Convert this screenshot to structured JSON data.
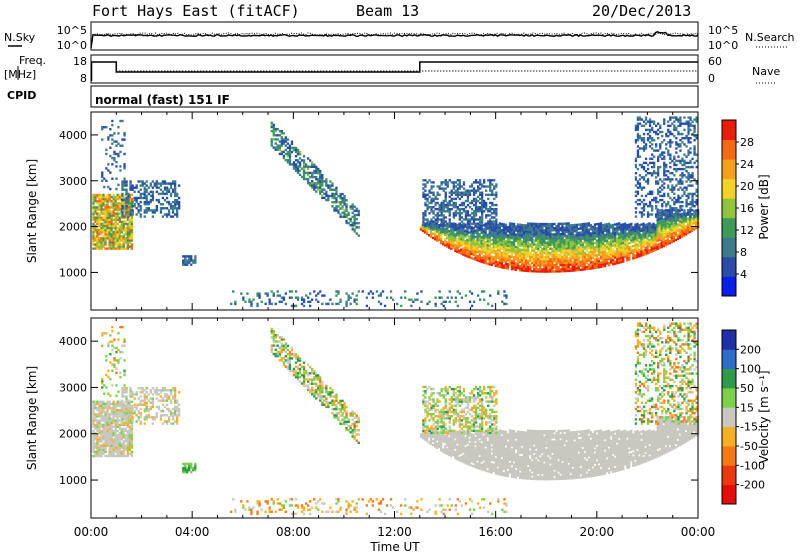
{
  "header": {
    "station": "Fort Hays East (fitACF)",
    "beam": "Beam 13",
    "date": "20/Dec/2013"
  },
  "summary_panels": {
    "nsky_label": "N.Sky",
    "nsky_ticks": [
      "10^5",
      "10^0"
    ],
    "nsearch_label": "N.Search",
    "nsearch_ticks": [
      "10^5",
      "10^0"
    ],
    "freq_label_line1": "Freq.",
    "freq_label_line2": "[MHz]",
    "freq_ticks": [
      "18",
      "8"
    ],
    "nave_label": "Nave",
    "nave_ticks": [
      "60",
      "0"
    ],
    "cpid_label": "CPID",
    "cpid_value": "normal (fast) 151 IF"
  },
  "chart_data": [
    {
      "type": "heatmap",
      "name": "power",
      "ylabel": "Slant Range [km]",
      "yticks": [
        1000,
        2000,
        3000,
        4000
      ],
      "ylim": [
        180,
        4500
      ],
      "x_ticks": [
        "00:00",
        "04:00",
        "08:00",
        "12:00",
        "16:00",
        "20:00",
        "00:00"
      ],
      "xlim_hours": [
        0,
        24
      ],
      "colorbar": {
        "label": "Power [dB]",
        "ticks": [
          "4",
          "8",
          "12",
          "16",
          "20",
          "24",
          "28"
        ],
        "range": [
          0,
          30
        ],
        "colors": [
          "#0a1ee6",
          "#2a4ca8",
          "#3d7a8c",
          "#3f9a5a",
          "#8fc43c",
          "#f2d22a",
          "#f7a020",
          "#f46a14",
          "#e81e0c"
        ]
      }
    },
    {
      "type": "heatmap",
      "name": "velocity",
      "ylabel": "Slant Range [km]",
      "yticks": [
        1000,
        2000,
        3000,
        4000
      ],
      "ylim": [
        180,
        4500
      ],
      "x_ticks": [
        "00:00",
        "04:00",
        "08:00",
        "12:00",
        "16:00",
        "20:00",
        "00:00"
      ],
      "xlabel": "Time UT",
      "colorbar": {
        "label": "Velocity [m s⁻¹]",
        "ticks": [
          "200",
          "100",
          "50",
          "15",
          "-15",
          "-50",
          "-100",
          "-200"
        ],
        "range": [
          -250,
          250
        ],
        "colors": [
          "#1f2fa8",
          "#2e6ccc",
          "#2e9a4a",
          "#7cd04a",
          "#c8c8c0",
          "#f6b028",
          "#f47a18",
          "#e83a10",
          "#e60a0a"
        ]
      }
    }
  ]
}
